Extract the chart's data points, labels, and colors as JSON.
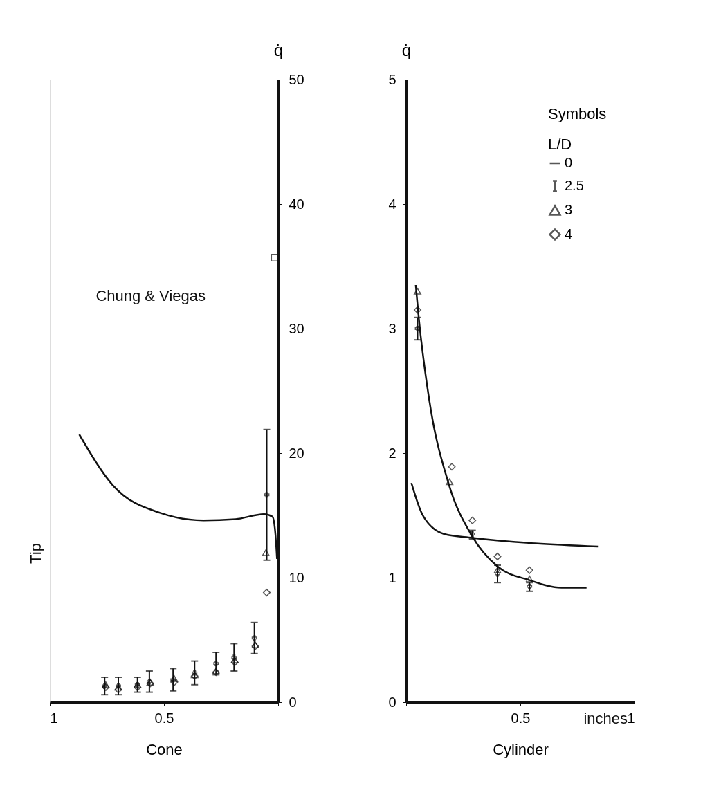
{
  "chart_data": [
    {
      "type": "scatter",
      "xlabel": "Cone",
      "y2label": "q̇",
      "xlim": [
        1,
        0
      ],
      "xticks": [
        1,
        0.5,
        {
          "value": 0,
          "label": null
        }
      ],
      "y2lim": [
        0,
        50
      ],
      "y2ticks": [
        0,
        10,
        20,
        30,
        40,
        50
      ],
      "grid": false,
      "legend": false,
      "annotations": [
        "Tip",
        "Chung & Viegas"
      ],
      "series": [
        {
          "type": "line",
          "axis": "y2",
          "color": "#111111",
          "marker": "none",
          "x": [
            0.871,
            0.723,
            0.517,
            0.327,
            0.186,
            0.062,
            0.025,
            0.012,
            0.005
          ],
          "values": [
            21.5,
            17.4,
            15.2,
            14.6,
            14.7,
            15.1,
            14.9,
            13.5,
            11.5
          ]
        },
        {
          "axis": "y2",
          "color": "#111111",
          "marker": "square",
          "x": [
            0.015
          ],
          "values": [
            35.7
          ]
        },
        {
          "axis": "y2",
          "color": "#111111",
          "marker": "cross",
          "x": [
            0.76,
            0.7,
            0.616,
            0.564,
            0.46,
            0.366,
            0.272,
            0.193,
            0.104,
            0.05
          ],
          "values": [
            1.3,
            1.3,
            1.4,
            1.65,
            1.8,
            2.35,
            3.1,
            3.6,
            5.15,
            16.65
          ],
          "errors": [
            [
              0.6,
              2.0
            ],
            [
              0.6,
              2.0
            ],
            [
              0.8,
              2.0
            ],
            [
              0.8,
              2.5
            ],
            [
              0.9,
              2.7
            ],
            [
              1.4,
              3.3
            ],
            [
              2.2,
              4.0
            ],
            [
              2.5,
              4.7
            ],
            [
              3.9,
              6.4
            ],
            [
              11.4,
              21.9
            ]
          ]
        },
        {
          "axis": "y2",
          "color": "#111111",
          "marker": "triangle",
          "x": [
            0.755,
            0.7,
            0.616,
            0.56,
            0.455,
            0.366,
            0.272,
            0.19,
            0.1,
            0.054
          ],
          "values": [
            1.4,
            1.2,
            1.4,
            1.6,
            1.9,
            2.2,
            2.5,
            3.4,
            4.6,
            12.0
          ]
        },
        {
          "axis": "y2",
          "color": "#111111",
          "marker": "diamond",
          "x": [
            0.755,
            0.7,
            0.616,
            0.56,
            0.455,
            0.366,
            0.272,
            0.19,
            0.1,
            0.05
          ],
          "values": [
            1.2,
            1.0,
            1.2,
            1.5,
            1.6,
            2.1,
            2.4,
            3.2,
            4.5,
            8.8
          ]
        }
      ]
    },
    {
      "type": "scatter",
      "xlabel": "Cylinder",
      "ylabel": "q̇",
      "xlim": [
        0,
        1
      ],
      "xticks": [
        {
          "value": 0,
          "label": null
        },
        0.5,
        1
      ],
      "ylim": [
        0,
        5
      ],
      "yticks": [
        0,
        1,
        2,
        3,
        4,
        5
      ],
      "grid": false,
      "legend": "top right",
      "legend_title": "Symbols\nL/D",
      "annotations": [
        "inches"
      ],
      "series": [
        {
          "name": "0",
          "type": "line",
          "color": "#111111",
          "marker": "none",
          "x": [
            0.023,
            0.073,
            0.167,
            0.29,
            0.84
          ],
          "values": [
            1.76,
            1.5,
            1.35,
            1.32,
            1.25
          ]
        },
        {
          "name": "0",
          "type": "line",
          "color": "#111111",
          "marker": "none",
          "x": [
            0.042,
            0.055,
            0.1,
            0.185,
            0.29,
            0.4,
            0.54,
            0.68,
            0.79
          ],
          "values": [
            3.35,
            3.09,
            2.44,
            1.76,
            1.33,
            1.09,
            0.98,
            0.92,
            0.92
          ]
        },
        {
          "name": "2.5",
          "color": "#111111",
          "marker": "cross",
          "x": [
            0.05,
            0.29,
            0.4,
            0.54
          ],
          "values": [
            3.0,
            1.35,
            1.03,
            0.93
          ],
          "errors": [
            [
              2.91,
              3.09
            ],
            [
              1.31,
              1.38
            ],
            [
              0.96,
              1.1
            ],
            [
              0.89,
              0.96
            ]
          ]
        },
        {
          "name": "3",
          "color": "#111111",
          "marker": "triangle",
          "x": [
            0.05,
            0.19,
            0.4,
            0.54
          ],
          "values": [
            3.3,
            1.77,
            1.06,
            0.99
          ]
        },
        {
          "name": "4",
          "color": "#111111",
          "marker": "diamond",
          "x": [
            0.05,
            0.2,
            0.29,
            0.4,
            0.54
          ],
          "values": [
            3.15,
            1.89,
            1.46,
            1.17,
            1.06
          ]
        }
      ]
    }
  ]
}
